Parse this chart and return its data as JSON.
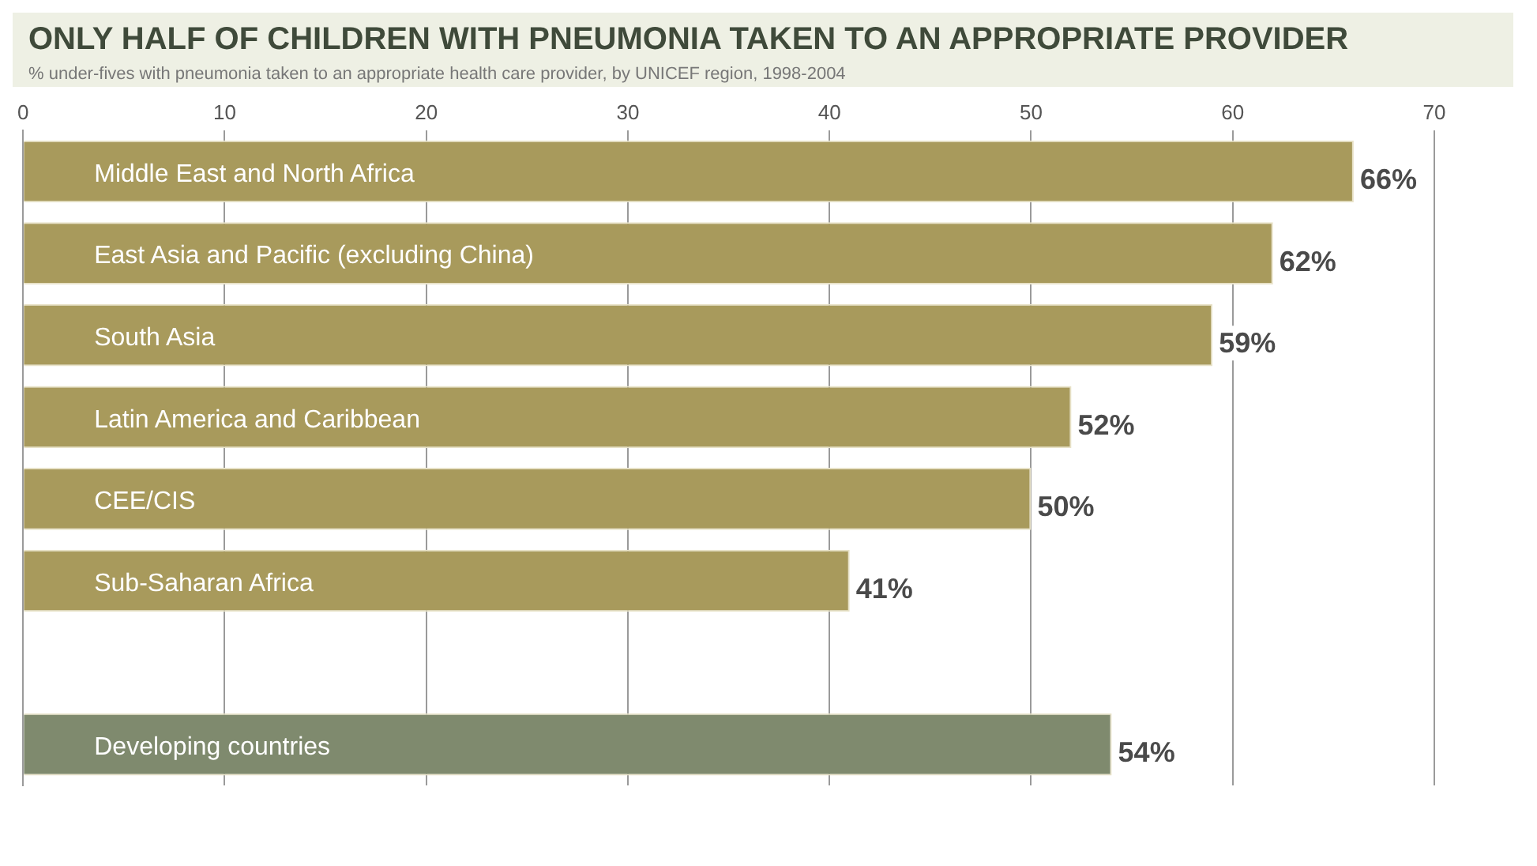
{
  "chart_data": {
    "type": "bar",
    "orientation": "horizontal",
    "title": "ONLY HALF OF CHILDREN WITH PNEUMONIA TAKEN TO AN APPROPRIATE PROVIDER",
    "subtitle": "% under-fives with pneumonia taken to an appropriate health care provider, by UNICEF region, 1998-2004",
    "categories": [
      "Middle East and North Africa",
      "East Asia and Pacific (excluding China)",
      "South Asia",
      "Latin America and Caribbean",
      "CEE/CIS",
      "Sub-Saharan Africa",
      null,
      "Developing countries"
    ],
    "values": [
      66,
      62,
      59,
      52,
      50,
      41,
      null,
      54
    ],
    "colors": [
      "#a89a5c",
      "#a89a5c",
      "#a89a5c",
      "#a89a5c",
      "#a89a5c",
      "#a89a5c",
      "#a89a5c",
      "#7f8a6e"
    ],
    "value_labels": [
      "66%",
      "62%",
      "59%",
      "52%",
      "50%",
      "41%",
      null,
      "54%"
    ],
    "xlim": [
      0,
      70
    ],
    "xticks": [
      0,
      10,
      20,
      30,
      40,
      50,
      60,
      70
    ],
    "grid": "x",
    "legend": false
  }
}
